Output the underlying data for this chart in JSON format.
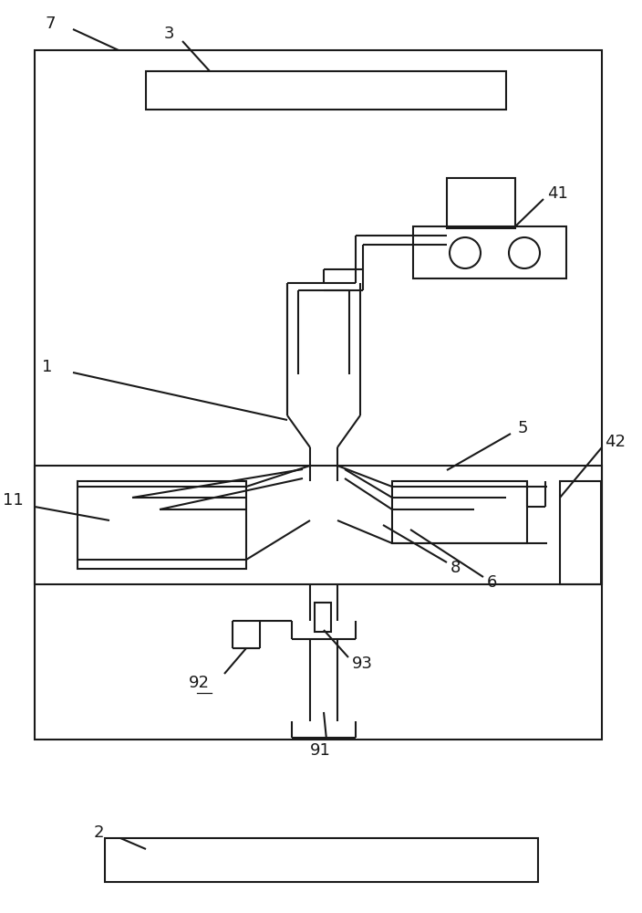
{
  "bg": "#ffffff",
  "lc": "#1a1a1a",
  "lw": 1.5
}
